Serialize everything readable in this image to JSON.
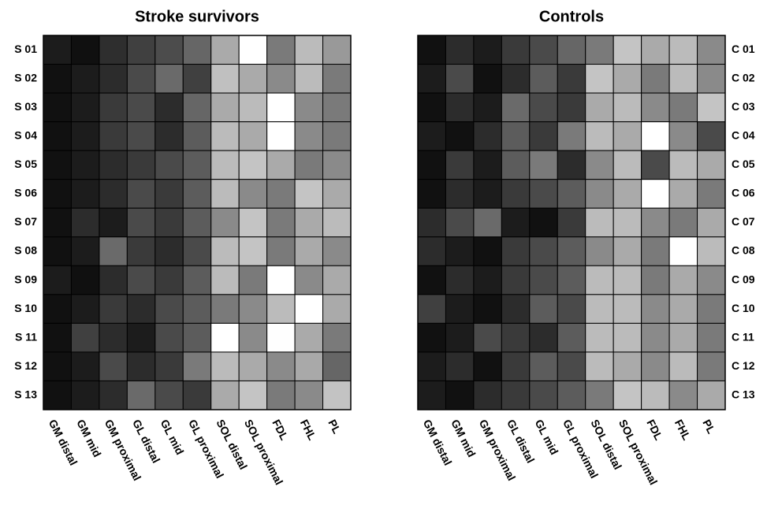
{
  "chart_data": [
    {
      "type": "heatmap",
      "title": "Stroke survivors",
      "row_label_side": "left",
      "rows": [
        "S 01",
        "S 02",
        "S 03",
        "S 04",
        "S 05",
        "S 06",
        "S 07",
        "S 08",
        "S 09",
        "S 10",
        "S 11",
        "S 12",
        "S 13"
      ],
      "columns": [
        "GM distal",
        "GM mid",
        "GM proximal",
        "GL distal",
        "GL mid",
        "GL proximal",
        "SOL distal",
        "SOL proximal",
        "FDL",
        "FHL",
        "PL"
      ],
      "colors": [
        [
          "#1c1c1c",
          "#101010",
          "#2e2e2e",
          "#404040",
          "#4c4c4c",
          "#666666",
          "#aaaaaa",
          "#ffffff",
          "#7a7a7a",
          "#bbbbbb",
          "#999999"
        ],
        [
          "#111111",
          "#1c1c1c",
          "#2c2c2c",
          "#4a4a4a",
          "#6a6a6a",
          "#404040",
          "#c0c0c0",
          "#aaaaaa",
          "#8a8a8a",
          "#bbbbbb",
          "#7a7a7a"
        ],
        [
          "#111111",
          "#1c1c1c",
          "#3a3a3a",
          "#4a4a4a",
          "#2c2c2c",
          "#666666",
          "#aaaaaa",
          "#bbbbbb",
          "#ffffff",
          "#8a8a8a",
          "#7a7a7a"
        ],
        [
          "#111111",
          "#1c1c1c",
          "#3a3a3a",
          "#4a4a4a",
          "#2c2c2c",
          "#5c5c5c",
          "#bbbbbb",
          "#aaaaaa",
          "#ffffff",
          "#8a8a8a",
          "#7a7a7a"
        ],
        [
          "#111111",
          "#1c1c1c",
          "#2c2c2c",
          "#3a3a3a",
          "#4a4a4a",
          "#5c5c5c",
          "#bbbbbb",
          "#c4c4c4",
          "#aaaaaa",
          "#7a7a7a",
          "#8a8a8a"
        ],
        [
          "#111111",
          "#1c1c1c",
          "#2c2c2c",
          "#4a4a4a",
          "#3a3a3a",
          "#5c5c5c",
          "#bbbbbb",
          "#8a8a8a",
          "#7a7a7a",
          "#c4c4c4",
          "#aaaaaa"
        ],
        [
          "#111111",
          "#2c2c2c",
          "#1c1c1c",
          "#4a4a4a",
          "#3a3a3a",
          "#5c5c5c",
          "#8a8a8a",
          "#c4c4c4",
          "#7a7a7a",
          "#aaaaaa",
          "#bbbbbb"
        ],
        [
          "#111111",
          "#1c1c1c",
          "#6a6a6a",
          "#3a3a3a",
          "#2c2c2c",
          "#4a4a4a",
          "#bbbbbb",
          "#c4c4c4",
          "#7a7a7a",
          "#aaaaaa",
          "#8a8a8a"
        ],
        [
          "#1c1c1c",
          "#101010",
          "#2c2c2c",
          "#4a4a4a",
          "#3a3a3a",
          "#5c5c5c",
          "#bbbbbb",
          "#7a7a7a",
          "#ffffff",
          "#8a8a8a",
          "#aaaaaa"
        ],
        [
          "#111111",
          "#1c1c1c",
          "#3a3a3a",
          "#2c2c2c",
          "#4a4a4a",
          "#5c5c5c",
          "#7a7a7a",
          "#8a8a8a",
          "#bbbbbb",
          "#ffffff",
          "#aaaaaa"
        ],
        [
          "#111111",
          "#404040",
          "#2c2c2c",
          "#1c1c1c",
          "#4a4a4a",
          "#5c5c5c",
          "#ffffff",
          "#8a8a8a",
          "#fefefe",
          "#aaaaaa",
          "#7a7a7a"
        ],
        [
          "#111111",
          "#1c1c1c",
          "#4a4a4a",
          "#2c2c2c",
          "#3a3a3a",
          "#7a7a7a",
          "#bbbbbb",
          "#aaaaaa",
          "#8a8a8a",
          "#a9a9a9",
          "#666666"
        ],
        [
          "#111111",
          "#1c1c1c",
          "#2c2c2c",
          "#6a6a6a",
          "#4a4a4a",
          "#3a3a3a",
          "#aaaaaa",
          "#c4c4c4",
          "#7a7a7a",
          "#8a8a8a",
          "#c3c3c3"
        ]
      ]
    },
    {
      "type": "heatmap",
      "title": "Controls",
      "row_label_side": "right",
      "rows": [
        "C 01",
        "C 02",
        "C 03",
        "C 04",
        "C 05",
        "C 06",
        "C 07",
        "C 08",
        "C 09",
        "C 10",
        "C 11",
        "C 12",
        "C 13"
      ],
      "columns": [
        "GM distal",
        "GM mid",
        "GM proximal",
        "GL distal",
        "GL mid",
        "GL proximal",
        "SOL distal",
        "SOL proximal",
        "FDL",
        "FHL",
        "PL"
      ],
      "colors": [
        [
          "#111111",
          "#2c2c2c",
          "#1c1c1c",
          "#3a3a3a",
          "#4a4a4a",
          "#666666",
          "#7a7a7a",
          "#c4c4c4",
          "#aaaaaa",
          "#bbbbbb",
          "#8a8a8a"
        ],
        [
          "#1c1c1c",
          "#4a4a4a",
          "#111111",
          "#2c2c2c",
          "#5c5c5c",
          "#3a3a3a",
          "#c4c4c4",
          "#aaaaaa",
          "#7a7a7a",
          "#bbbbbb",
          "#8a8a8a"
        ],
        [
          "#111111",
          "#2c2c2c",
          "#1c1c1c",
          "#6a6a6a",
          "#4a4a4a",
          "#3a3a3a",
          "#aaaaaa",
          "#bbbbbb",
          "#8a8a8a",
          "#7a7a7a",
          "#c4c4c4"
        ],
        [
          "#1c1c1c",
          "#111111",
          "#2c2c2c",
          "#5c5c5c",
          "#3a3a3a",
          "#7a7a7a",
          "#bbbbbb",
          "#aaaaaa",
          "#ffffff",
          "#8a8a8a",
          "#4a4a4a"
        ],
        [
          "#111111",
          "#3a3a3a",
          "#1c1c1c",
          "#5c5c5c",
          "#7a7a7a",
          "#2c2c2c",
          "#8a8a8a",
          "#bbbbbb",
          "#4a4a4a",
          "#bbbbbb",
          "#aaaaaa"
        ],
        [
          "#111111",
          "#2c2c2c",
          "#1c1c1c",
          "#3a3a3a",
          "#4a4a4a",
          "#5c5c5c",
          "#8a8a8a",
          "#aaaaaa",
          "#ffffff",
          "#aaaaaa",
          "#7a7a7a"
        ],
        [
          "#2c2c2c",
          "#4a4a4a",
          "#6a6a6a",
          "#1c1c1c",
          "#111111",
          "#3a3a3a",
          "#bbbbbb",
          "#bbbbbb",
          "#8a8a8a",
          "#7a7a7a",
          "#aaaaaa"
        ],
        [
          "#2c2c2c",
          "#1c1c1c",
          "#111111",
          "#3a3a3a",
          "#4a4a4a",
          "#5c5c5c",
          "#8a8a8a",
          "#aaaaaa",
          "#7a7a7a",
          "#ffffff",
          "#bbbbbb"
        ],
        [
          "#111111",
          "#2c2c2c",
          "#1c1c1c",
          "#3a3a3a",
          "#4a4a4a",
          "#5c5c5c",
          "#bbbbbb",
          "#bbbbbb",
          "#7a7a7a",
          "#aaaaaa",
          "#8a8a8a"
        ],
        [
          "#404040",
          "#1c1c1c",
          "#111111",
          "#2c2c2c",
          "#5c5c5c",
          "#4a4a4a",
          "#bbbbbb",
          "#bbbbbb",
          "#8a8a8a",
          "#aaaaaa",
          "#7a7a7a"
        ],
        [
          "#111111",
          "#1c1c1c",
          "#4a4a4a",
          "#3a3a3a",
          "#2c2c2c",
          "#5c5c5c",
          "#bbbbbb",
          "#bbbbbb",
          "#8a8a8a",
          "#aaaaaa",
          "#7a7a7a"
        ],
        [
          "#1c1c1c",
          "#2c2c2c",
          "#111111",
          "#3a3a3a",
          "#5c5c5c",
          "#4a4a4a",
          "#bbbbbb",
          "#aaaaaa",
          "#8a8a8a",
          "#bbbbbb",
          "#7a7a7a"
        ],
        [
          "#1c1c1c",
          "#111111",
          "#2c2c2c",
          "#3a3a3a",
          "#4a4a4a",
          "#5c5c5c",
          "#7a7a7a",
          "#c4c4c4",
          "#bbbbbb",
          "#8a8a8a",
          "#aaaaaa"
        ]
      ]
    }
  ]
}
